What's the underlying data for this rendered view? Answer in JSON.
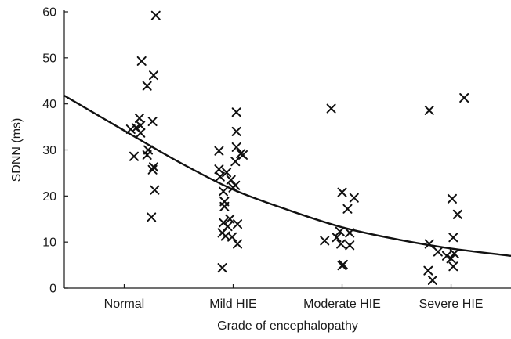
{
  "chart_data": {
    "type": "scatter",
    "title": "",
    "xlabel": "Grade of encephalopathy",
    "ylabel": "SDNN (ms)",
    "categories": [
      "Normal",
      "Mild HIE",
      "Moderate HIE",
      "Severe HIE"
    ],
    "ylim": [
      0,
      60
    ],
    "yticks": [
      0,
      10,
      20,
      30,
      40,
      50,
      60
    ],
    "grid": false,
    "legend": "none",
    "marker": "x",
    "points": [
      {
        "group": "Normal",
        "x": 0.29,
        "y": 59.2
      },
      {
        "group": "Normal",
        "x": 0.16,
        "y": 49.3
      },
      {
        "group": "Normal",
        "x": 0.27,
        "y": 46.2
      },
      {
        "group": "Normal",
        "x": 0.21,
        "y": 43.9
      },
      {
        "group": "Normal",
        "x": 0.14,
        "y": 36.9
      },
      {
        "group": "Normal",
        "x": 0.26,
        "y": 36.2
      },
      {
        "group": "Normal",
        "x": 0.15,
        "y": 35.3
      },
      {
        "group": "Normal",
        "x": 0.11,
        "y": 34.8
      },
      {
        "group": "Normal",
        "x": 0.06,
        "y": 34.5
      },
      {
        "group": "Normal",
        "x": 0.15,
        "y": 33.7
      },
      {
        "group": "Normal",
        "x": 0.22,
        "y": 30.0
      },
      {
        "group": "Normal",
        "x": 0.21,
        "y": 28.9
      },
      {
        "group": "Normal",
        "x": 0.09,
        "y": 28.6
      },
      {
        "group": "Normal",
        "x": 0.27,
        "y": 26.3
      },
      {
        "group": "Normal",
        "x": 0.26,
        "y": 25.7
      },
      {
        "group": "Normal",
        "x": 0.28,
        "y": 21.3
      },
      {
        "group": "Normal",
        "x": 0.25,
        "y": 15.4
      },
      {
        "group": "Mild HIE",
        "x": 1.03,
        "y": 38.2
      },
      {
        "group": "Mild HIE",
        "x": 1.03,
        "y": 34.0
      },
      {
        "group": "Mild HIE",
        "x": 1.03,
        "y": 30.6
      },
      {
        "group": "Mild HIE",
        "x": 0.87,
        "y": 29.8
      },
      {
        "group": "Mild HIE",
        "x": 1.07,
        "y": 29.2
      },
      {
        "group": "Mild HIE",
        "x": 1.09,
        "y": 28.9
      },
      {
        "group": "Mild HIE",
        "x": 1.02,
        "y": 27.5
      },
      {
        "group": "Mild HIE",
        "x": 0.87,
        "y": 25.8
      },
      {
        "group": "Mild HIE",
        "x": 0.94,
        "y": 25.1
      },
      {
        "group": "Mild HIE",
        "x": 0.88,
        "y": 24.2
      },
      {
        "group": "Mild HIE",
        "x": 0.98,
        "y": 23.5
      },
      {
        "group": "Mild HIE",
        "x": 1.02,
        "y": 22.3
      },
      {
        "group": "Mild HIE",
        "x": 1.0,
        "y": 21.8
      },
      {
        "group": "Mild HIE",
        "x": 0.91,
        "y": 21.0
      },
      {
        "group": "Mild HIE",
        "x": 0.92,
        "y": 18.8
      },
      {
        "group": "Mild HIE",
        "x": 0.92,
        "y": 17.7
      },
      {
        "group": "Mild HIE",
        "x": 0.97,
        "y": 15.0
      },
      {
        "group": "Mild HIE",
        "x": 0.91,
        "y": 14.2
      },
      {
        "group": "Mild HIE",
        "x": 1.04,
        "y": 13.9
      },
      {
        "group": "Mild HIE",
        "x": 0.95,
        "y": 13.4
      },
      {
        "group": "Mild HIE",
        "x": 0.9,
        "y": 12.0
      },
      {
        "group": "Mild HIE",
        "x": 0.93,
        "y": 11.3
      },
      {
        "group": "Mild HIE",
        "x": 0.99,
        "y": 11.1
      },
      {
        "group": "Mild HIE",
        "x": 1.04,
        "y": 9.6
      },
      {
        "group": "Mild HIE",
        "x": 0.9,
        "y": 4.4
      },
      {
        "group": "Moderate HIE",
        "x": 1.9,
        "y": 39.0
      },
      {
        "group": "Moderate HIE",
        "x": 2.0,
        "y": 20.8
      },
      {
        "group": "Moderate HIE",
        "x": 2.11,
        "y": 19.6
      },
      {
        "group": "Moderate HIE",
        "x": 2.05,
        "y": 17.2
      },
      {
        "group": "Moderate HIE",
        "x": 1.98,
        "y": 12.3
      },
      {
        "group": "Moderate HIE",
        "x": 2.07,
        "y": 12.0
      },
      {
        "group": "Moderate HIE",
        "x": 1.95,
        "y": 11.0
      },
      {
        "group": "Moderate HIE",
        "x": 1.84,
        "y": 10.3
      },
      {
        "group": "Moderate HIE",
        "x": 1.99,
        "y": 9.6
      },
      {
        "group": "Moderate HIE",
        "x": 2.07,
        "y": 9.3
      },
      {
        "group": "Moderate HIE",
        "x": 2.01,
        "y": 5.1
      },
      {
        "group": "Moderate HIE",
        "x": 2.0,
        "y": 4.9
      },
      {
        "group": "Severe HIE",
        "x": 3.12,
        "y": 41.3
      },
      {
        "group": "Severe HIE",
        "x": 2.8,
        "y": 38.6
      },
      {
        "group": "Severe HIE",
        "x": 3.01,
        "y": 19.4
      },
      {
        "group": "Severe HIE",
        "x": 3.06,
        "y": 16.0
      },
      {
        "group": "Severe HIE",
        "x": 3.02,
        "y": 11.0
      },
      {
        "group": "Severe HIE",
        "x": 2.8,
        "y": 9.6
      },
      {
        "group": "Severe HIE",
        "x": 2.88,
        "y": 7.9
      },
      {
        "group": "Severe HIE",
        "x": 3.03,
        "y": 7.5
      },
      {
        "group": "Severe HIE",
        "x": 2.96,
        "y": 7.0
      },
      {
        "group": "Severe HIE",
        "x": 3.0,
        "y": 6.4
      },
      {
        "group": "Severe HIE",
        "x": 3.02,
        "y": 4.7
      },
      {
        "group": "Severe HIE",
        "x": 2.79,
        "y": 3.8
      },
      {
        "group": "Severe HIE",
        "x": 2.83,
        "y": 1.7
      }
    ],
    "fit_line": {
      "x": [
        -0.55,
        0.0,
        0.5,
        1.0,
        1.5,
        2.0,
        2.5,
        3.0,
        3.55
      ],
      "y": [
        41.8,
        34.2,
        27.4,
        21.4,
        17.0,
        13.2,
        10.6,
        8.6,
        7.0
      ]
    }
  }
}
